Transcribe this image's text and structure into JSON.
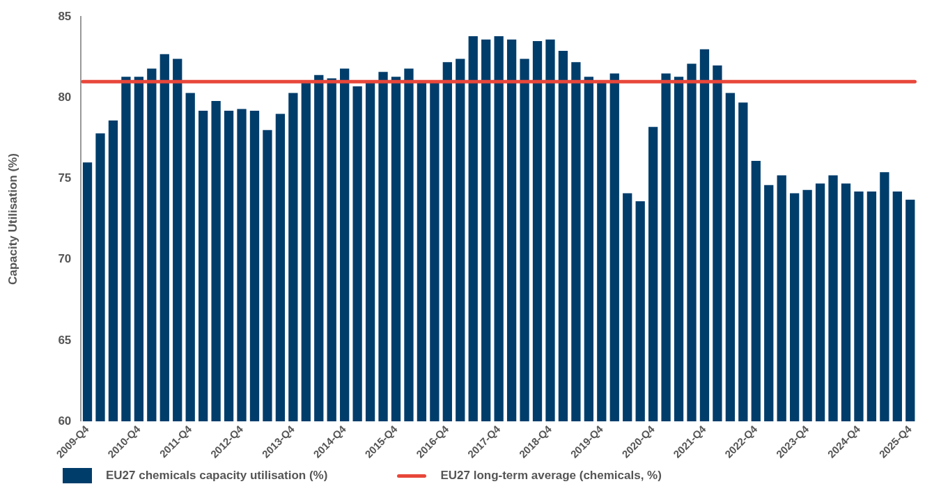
{
  "chart_data": {
    "type": "bar",
    "ylabel": "Capacity Utilisation (%)",
    "categories": [
      "2009-Q4",
      null,
      null,
      null,
      "2010-Q4",
      null,
      null,
      null,
      "2011-Q4",
      null,
      null,
      null,
      "2012-Q4",
      null,
      null,
      null,
      "2013-Q4",
      null,
      null,
      null,
      "2014-Q4",
      null,
      null,
      null,
      "2015-Q4",
      null,
      null,
      null,
      "2016-Q4",
      null,
      null,
      null,
      "2017-Q4",
      null,
      null,
      null,
      "2018-Q4",
      null,
      null,
      null,
      "2019-Q4",
      null,
      null,
      null,
      "2020-Q4",
      null,
      null,
      null,
      "2021-Q4",
      null,
      null,
      null,
      "2022-Q4",
      null,
      null,
      null,
      "2023-Q4",
      null,
      null,
      null,
      "2024-Q4",
      null,
      null,
      null,
      "2025-Q4"
    ],
    "series": [
      {
        "name": "EU27 chemicals capacity utilisation (%)",
        "color": "#003d6b",
        "values": [
          76.0,
          77.8,
          78.6,
          81.3,
          81.3,
          81.8,
          82.7,
          82.4,
          80.3,
          79.2,
          79.8,
          79.2,
          79.3,
          79.2,
          78.0,
          79.0,
          80.3,
          81.0,
          81.4,
          81.2,
          81.8,
          80.7,
          81.0,
          81.6,
          81.3,
          81.8,
          81.0,
          81.0,
          82.2,
          82.4,
          83.8,
          83.6,
          83.8,
          83.6,
          82.4,
          83.5,
          83.6,
          82.9,
          82.2,
          81.3,
          81.0,
          81.5,
          74.1,
          73.6,
          78.2,
          81.5,
          81.3,
          82.1,
          83.0,
          82.0,
          80.3,
          79.7,
          76.1,
          74.6,
          75.2,
          74.1,
          74.3,
          74.7,
          75.2,
          74.7,
          74.2,
          74.2,
          75.4,
          74.2,
          73.7
        ]
      }
    ],
    "ylim": [
      60,
      85
    ],
    "yticks": [
      60,
      65,
      70,
      75,
      80,
      85
    ],
    "grid": false,
    "legend": "bottom",
    "ref_lines": [
      {
        "axis": "y",
        "value": 81,
        "label": "EU27 long-term average (chemicals, %)",
        "color": "#e8473a"
      }
    ]
  }
}
